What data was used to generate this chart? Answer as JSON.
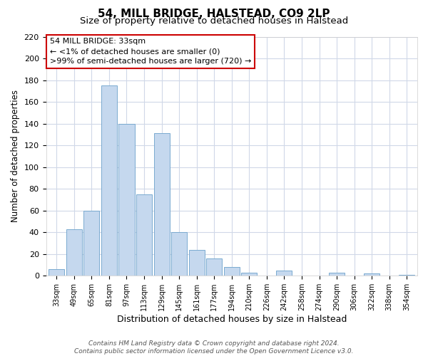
{
  "title": "54, MILL BRIDGE, HALSTEAD, CO9 2LP",
  "subtitle": "Size of property relative to detached houses in Halstead",
  "xlabel": "Distribution of detached houses by size in Halstead",
  "ylabel": "Number of detached properties",
  "categories": [
    "33sqm",
    "49sqm",
    "65sqm",
    "81sqm",
    "97sqm",
    "113sqm",
    "129sqm",
    "145sqm",
    "161sqm",
    "177sqm",
    "194sqm",
    "210sqm",
    "226sqm",
    "242sqm",
    "258sqm",
    "274sqm",
    "290sqm",
    "306sqm",
    "322sqm",
    "338sqm",
    "354sqm"
  ],
  "values": [
    6,
    43,
    60,
    175,
    140,
    75,
    131,
    40,
    24,
    16,
    8,
    3,
    0,
    5,
    0,
    0,
    3,
    0,
    2,
    0,
    1
  ],
  "bar_color": "#c5d8ee",
  "bar_edge_color": "#7aaad0",
  "annotation_box_edge": "#cc0000",
  "annotation_lines": [
    "54 MILL BRIDGE: 33sqm",
    "← <1% of detached houses are smaller (0)",
    ">99% of semi-detached houses are larger (720) →"
  ],
  "ylim": [
    0,
    220
  ],
  "yticks": [
    0,
    20,
    40,
    60,
    80,
    100,
    120,
    140,
    160,
    180,
    200,
    220
  ],
  "footer_lines": [
    "Contains HM Land Registry data © Crown copyright and database right 2024.",
    "Contains public sector information licensed under the Open Government Licence v3.0."
  ],
  "background_color": "#ffffff",
  "grid_color": "#d0d8e8"
}
